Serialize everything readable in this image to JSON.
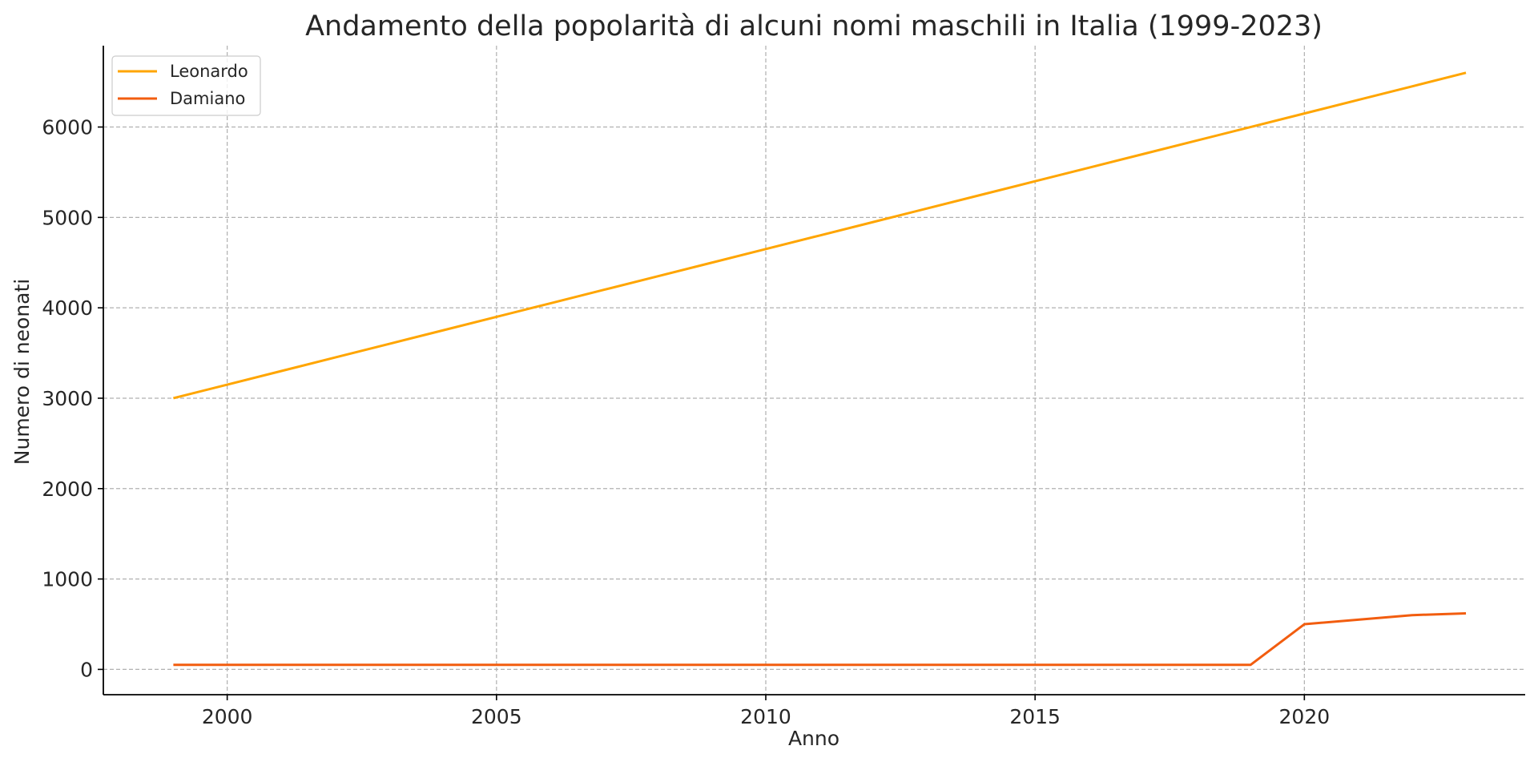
{
  "chart_data": {
    "type": "line",
    "title": "Andamento della popolarità di alcuni nomi maschili in Italia (1999-2023)",
    "xlabel": "Anno",
    "ylabel": "Numero di neonati",
    "xlim": [
      1997.7,
      2024.1
    ],
    "ylim": [
      -280,
      6900
    ],
    "x_ticks": [
      2000,
      2005,
      2010,
      2015,
      2020
    ],
    "y_ticks": [
      0,
      1000,
      2000,
      3000,
      4000,
      5000,
      6000
    ],
    "grid": true,
    "legend_position": "top-left",
    "x": [
      1999,
      2000,
      2001,
      2002,
      2003,
      2004,
      2005,
      2006,
      2007,
      2008,
      2009,
      2010,
      2011,
      2012,
      2013,
      2014,
      2015,
      2016,
      2017,
      2018,
      2019,
      2020,
      2021,
      2022,
      2023
    ],
    "series": [
      {
        "name": "Leonardo",
        "color": "#ffa500",
        "values": [
          3000,
          3150,
          3300,
          3450,
          3600,
          3750,
          3900,
          4050,
          4200,
          4350,
          4500,
          4650,
          4800,
          4950,
          5100,
          5250,
          5400,
          5550,
          5700,
          5850,
          6000,
          6150,
          6300,
          6450,
          6600
        ]
      },
      {
        "name": "Damiano",
        "color": "#f25d0f",
        "values": [
          50,
          50,
          50,
          50,
          50,
          50,
          50,
          50,
          50,
          50,
          50,
          50,
          50,
          50,
          50,
          50,
          50,
          50,
          50,
          50,
          50,
          500,
          550,
          600,
          620
        ]
      }
    ]
  }
}
